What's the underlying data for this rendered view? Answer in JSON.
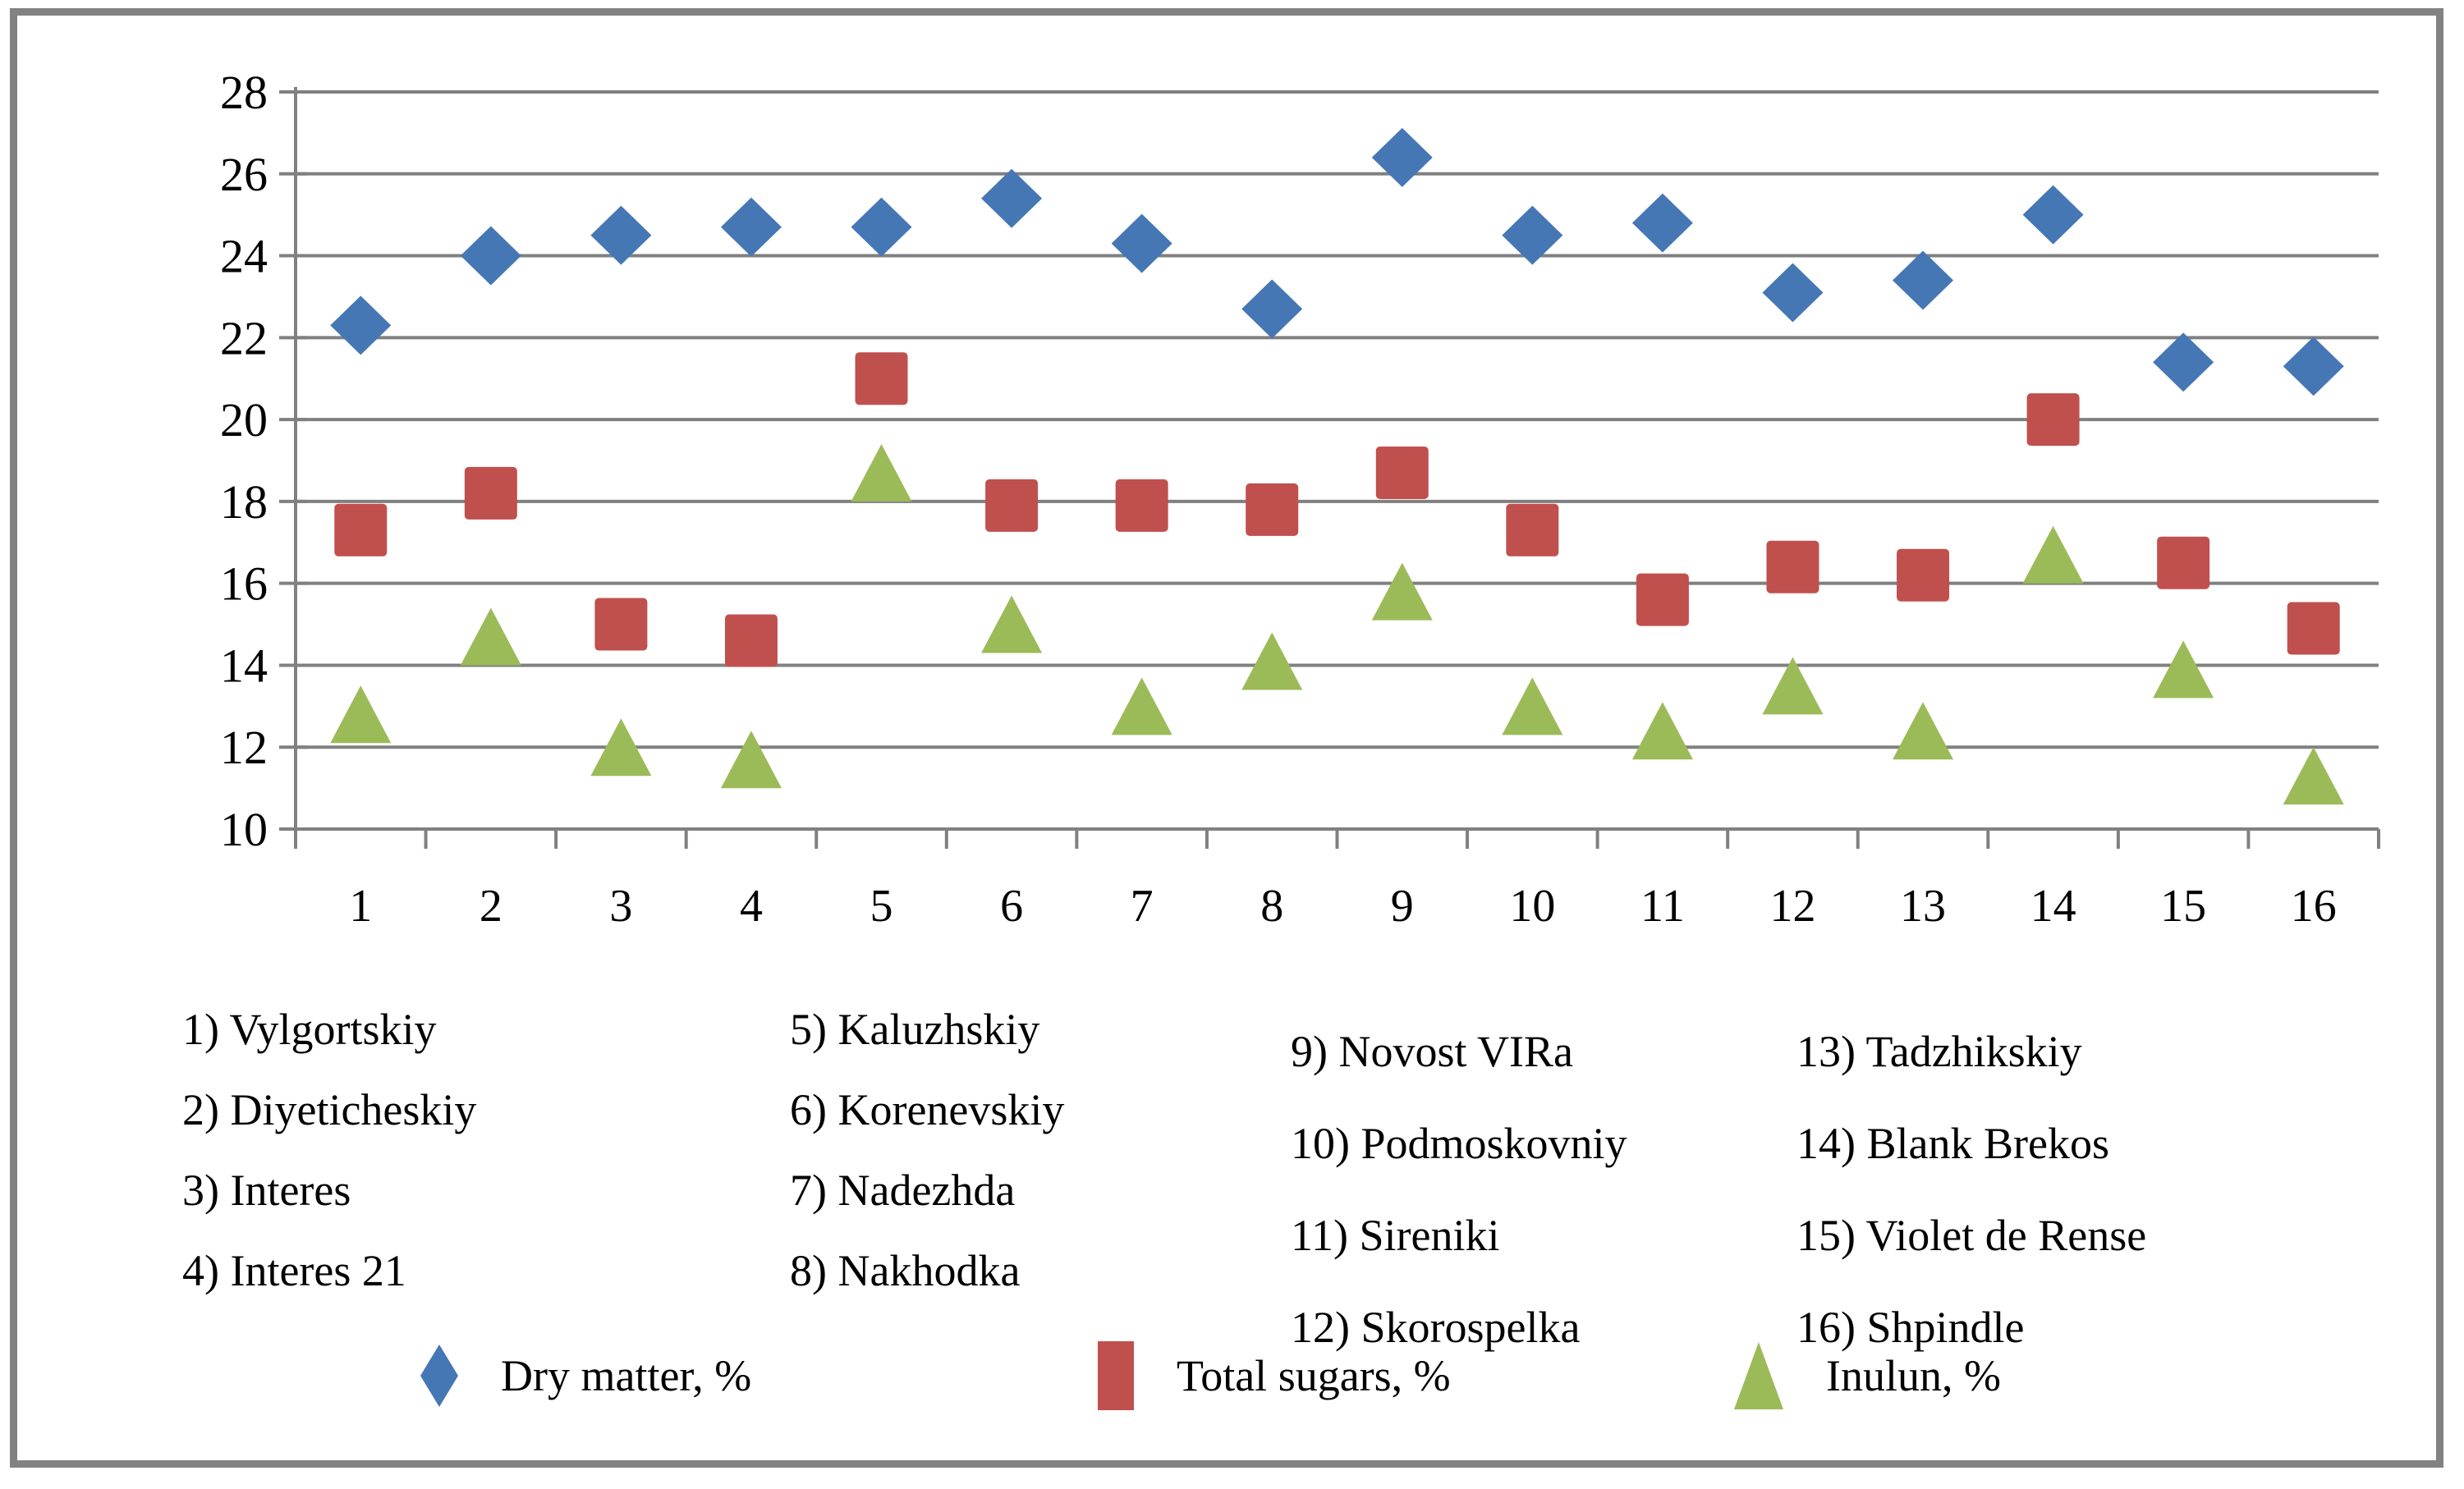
{
  "chart_data": {
    "type": "scatter",
    "title": "",
    "categories": [
      "1",
      "2",
      "3",
      "4",
      "5",
      "6",
      "7",
      "8",
      "9",
      "10",
      "11",
      "12",
      "13",
      "14",
      "15",
      "16"
    ],
    "y_axis": {
      "min": 10,
      "max": 28,
      "tick_step": 2
    },
    "grid": "horizontal",
    "legend_position": "bottom",
    "series": [
      {
        "name": "Dry matter, %",
        "marker": "diamond",
        "color": "#4677b5",
        "values": [
          22.3,
          24.0,
          24.5,
          24.7,
          24.7,
          25.4,
          24.3,
          22.7,
          26.4,
          24.5,
          24.8,
          23.1,
          23.4,
          25.0,
          21.4,
          21.3
        ]
      },
      {
        "name": "Total sugars, %",
        "marker": "square",
        "color": "#c0504d",
        "values": [
          17.3,
          18.2,
          15.0,
          14.6,
          21.0,
          17.9,
          17.9,
          17.8,
          18.7,
          17.3,
          15.6,
          16.4,
          16.2,
          20.0,
          16.5,
          14.9
        ]
      },
      {
        "name": "Inulun, %",
        "marker": "triangle",
        "color": "#9bbb59",
        "values": [
          12.8,
          14.7,
          12.0,
          11.7,
          18.7,
          15.0,
          13.0,
          14.1,
          15.8,
          13.0,
          12.4,
          13.5,
          12.4,
          16.7,
          13.9,
          11.3
        ]
      }
    ]
  },
  "variety_legend": {
    "columns": [
      [
        "1) Vylgortskiy",
        "2) Diyeticheskiy",
        "3) Interes",
        "4) Interes 21"
      ],
      [
        "5) Kaluzhskiy",
        "6) Korenevskiy",
        "7) Nadezhda",
        "8) Nakhodka"
      ],
      [
        "9) Novost VIRa",
        "10) Podmoskovniy",
        "11) Sireniki",
        "12) Skorospelka"
      ],
      [
        "13) Tadzhikskiy",
        "14) Blank Brekos",
        "15) Violet de Rense",
        "16) Shpindle"
      ]
    ]
  },
  "style": {
    "gridline_color": "#808080",
    "axis_color": "#808080",
    "border_color": "#828282",
    "text_color": "#000000"
  }
}
